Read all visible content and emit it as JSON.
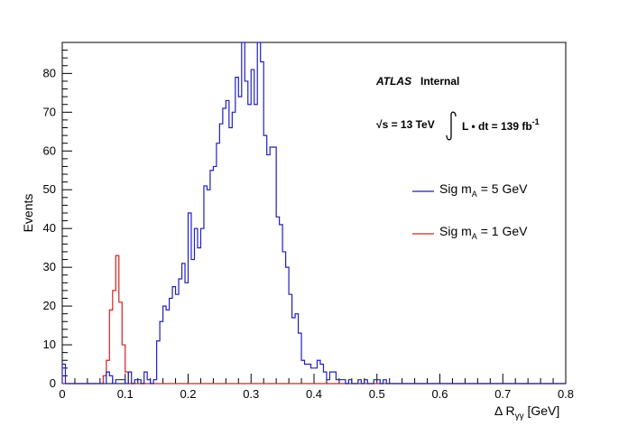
{
  "chart_data": {
    "type": "histogram",
    "xlabel": "Δ R",
    "xlabel_sub": "γγ",
    "xlabel_unit": "[GeV]",
    "ylabel": "Events",
    "xlim": [
      0,
      0.8
    ],
    "ylim": [
      0,
      88
    ],
    "bin_width": 0.005,
    "x_ticks": [
      "0",
      "0.1",
      "0.2",
      "0.3",
      "0.4",
      "0.5",
      "0.6",
      "0.7",
      "0.8"
    ],
    "y_ticks": [
      "0",
      "10",
      "20",
      "30",
      "40",
      "50",
      "60",
      "70",
      "80"
    ],
    "annotations": {
      "experiment": "ATLAS",
      "status": "Internal",
      "energy": "√s = 13 TeV",
      "lumi_prefix": "L • dt = 139 fb",
      "lumi_exp": "-1"
    },
    "series": [
      {
        "name": "Sig m",
        "name_sub": "A",
        "name_suffix": "= 5 GeV",
        "color": "#1f1fbf",
        "values": [
          5,
          0,
          0,
          0,
          0,
          0,
          0,
          0,
          0,
          0,
          0,
          0,
          0,
          0,
          3,
          2,
          0,
          1,
          1,
          1,
          0,
          3,
          0,
          1,
          1,
          0,
          3,
          1,
          0,
          1,
          11,
          16,
          20,
          19,
          22,
          25,
          23,
          27,
          31,
          26,
          44,
          32,
          40,
          35,
          40,
          51,
          50,
          55,
          56,
          62,
          67,
          71,
          73,
          66,
          70,
          79,
          74,
          89,
          78,
          72,
          81,
          72,
          89,
          83,
          64,
          59,
          61,
          61,
          43,
          41,
          34,
          30,
          23,
          17,
          18,
          13,
          6,
          5,
          5,
          4,
          4,
          6,
          5,
          3,
          1,
          3,
          3,
          1,
          1,
          1,
          0,
          1,
          0,
          0,
          1,
          0,
          1,
          0,
          0,
          1,
          1,
          0,
          1,
          0,
          0,
          0,
          0,
          0,
          0,
          0,
          0,
          0,
          0,
          0,
          0,
          0,
          0,
          0,
          0,
          0,
          0,
          0,
          0,
          0,
          0,
          0,
          0,
          0,
          0,
          0,
          0,
          0,
          0,
          0,
          0,
          0,
          0,
          0,
          0,
          0,
          0,
          0,
          0,
          0,
          0,
          0,
          0,
          0,
          0,
          0,
          0,
          0,
          0,
          0,
          0,
          0,
          0,
          0,
          0,
          0
        ]
      },
      {
        "name": "Sig m",
        "name_sub": "A",
        "name_suffix": "= 1 GeV",
        "color": "#d62020",
        "values": [
          0,
          0,
          0,
          0,
          0,
          0,
          0,
          0,
          0,
          0,
          0,
          0,
          0,
          2,
          6,
          19,
          24,
          33,
          21,
          10,
          3,
          0,
          0,
          0,
          0,
          0,
          0,
          0,
          0,
          0,
          0,
          0,
          0,
          0,
          0,
          0,
          0,
          0,
          0,
          0,
          0,
          0,
          0,
          0,
          0,
          0,
          0,
          0,
          0,
          0,
          0,
          0,
          0,
          0,
          0,
          0,
          0,
          0,
          0,
          0,
          0,
          0,
          0,
          0,
          0,
          0,
          0,
          0,
          0,
          0,
          0,
          0,
          0,
          0,
          0,
          0,
          0,
          0,
          0,
          0,
          0,
          0,
          0,
          0,
          0,
          0,
          0,
          0,
          0,
          0,
          0,
          0,
          0,
          0,
          0,
          0,
          0,
          0,
          0,
          0,
          0,
          0,
          0,
          0,
          0,
          0,
          0,
          0,
          0,
          0,
          0,
          0,
          0,
          0,
          0,
          0,
          0,
          0,
          0,
          0,
          0,
          0,
          0,
          0,
          0,
          0,
          0,
          0,
          0,
          0,
          0,
          0,
          0,
          0,
          0,
          0,
          0,
          0,
          0,
          0,
          0,
          0,
          0,
          0,
          0,
          0,
          0,
          0,
          0,
          0,
          0,
          0,
          0,
          0,
          0,
          0,
          0,
          0,
          0,
          0
        ]
      }
    ],
    "legend_placement": "right"
  }
}
